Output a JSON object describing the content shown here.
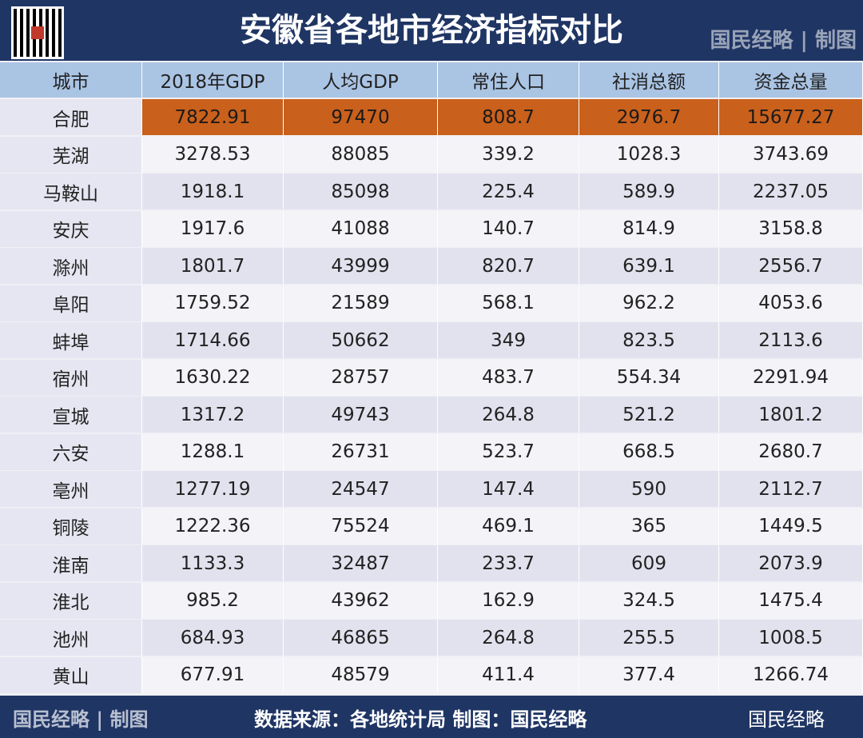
{
  "header": {
    "title": "安徽省各地市经济指标对比",
    "credit": "国民经略 | 制图"
  },
  "table": {
    "columns": [
      "城市",
      "2018年GDP",
      "人均GDP",
      "常住人口",
      "社消总额",
      "资金总量"
    ],
    "rows": [
      [
        "合肥",
        "7822.91",
        "97470",
        "808.7",
        "2976.7",
        "15677.27"
      ],
      [
        "芜湖",
        "3278.53",
        "88085",
        "339.2",
        "1028.3",
        "3743.69"
      ],
      [
        "马鞍山",
        "1918.1",
        "85098",
        "225.4",
        "589.9",
        "2237.05"
      ],
      [
        "安庆",
        "1917.6",
        "41088",
        "140.7",
        "814.9",
        "3158.8"
      ],
      [
        "滁州",
        "1801.7",
        "43999",
        "820.7",
        "639.1",
        "2556.7"
      ],
      [
        "阜阳",
        "1759.52",
        "21589",
        "568.1",
        "962.2",
        "4053.6"
      ],
      [
        "蚌埠",
        "1714.66",
        "50662",
        "349",
        "823.5",
        "2113.6"
      ],
      [
        "宿州",
        "1630.22",
        "28757",
        "483.7",
        "554.34",
        "2291.94"
      ],
      [
        "宣城",
        "1317.2",
        "49743",
        "264.8",
        "521.2",
        "1801.2"
      ],
      [
        "六安",
        "1288.1",
        "26731",
        "523.7",
        "668.5",
        "2680.7"
      ],
      [
        "亳州",
        "1277.19",
        "24547",
        "147.4",
        "590",
        "2112.7"
      ],
      [
        "铜陵",
        "1222.36",
        "75524",
        "469.1",
        "365",
        "1449.5"
      ],
      [
        "淮南",
        "1133.3",
        "32487",
        "233.7",
        "609",
        "2073.9"
      ],
      [
        "淮北",
        "985.2",
        "43962",
        "162.9",
        "324.5",
        "1475.4"
      ],
      [
        "池州",
        "684.93",
        "46865",
        "264.8",
        "255.5",
        "1008.5"
      ],
      [
        "黄山",
        "677.91",
        "48579",
        "411.4",
        "377.4",
        "1266.74"
      ]
    ]
  },
  "footer": {
    "credit": "国民经略 | 制图",
    "source": "数据来源：各地统计局 制图：国民经略",
    "brand": "国民经略"
  }
}
